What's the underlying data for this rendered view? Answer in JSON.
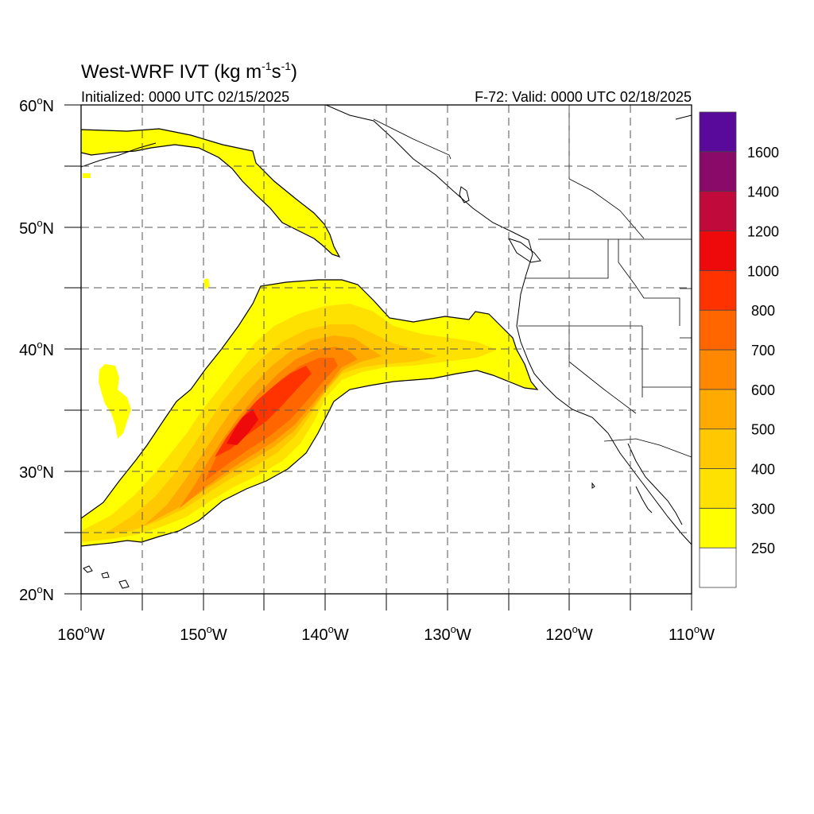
{
  "title_main": "West-WRF IVT (kg m",
  "title_exp1": "-1",
  "title_mid": "s",
  "title_exp2": "-1",
  "title_end": ")",
  "init_text": "Initialized: 0000 UTC 02/15/2025",
  "valid_text": "F-72: Valid: 0000 UTC 02/18/2025",
  "lat_labels": [
    {
      "deg": "20",
      "sup": "o",
      "hemi": "N"
    },
    {
      "deg": "30",
      "sup": "o",
      "hemi": "N"
    },
    {
      "deg": "40",
      "sup": "o",
      "hemi": "N"
    },
    {
      "deg": "50",
      "sup": "o",
      "hemi": "N"
    },
    {
      "deg": "60",
      "sup": "o",
      "hemi": "N"
    }
  ],
  "lon_labels": [
    {
      "deg": "160",
      "sup": "o",
      "hemi": "W"
    },
    {
      "deg": "150",
      "sup": "o",
      "hemi": "W"
    },
    {
      "deg": "140",
      "sup": "o",
      "hemi": "W"
    },
    {
      "deg": "130",
      "sup": "o",
      "hemi": "W"
    },
    {
      "deg": "120",
      "sup": "o",
      "hemi": "W"
    },
    {
      "deg": "110",
      "sup": "o",
      "hemi": "W"
    }
  ],
  "colorbar": {
    "levels": [
      250,
      300,
      400,
      500,
      600,
      700,
      800,
      1000,
      1200,
      1400,
      1600
    ],
    "colors": [
      "#ffffff",
      "#ffff00",
      "#ffe100",
      "#ffc800",
      "#ffaa00",
      "#ff8800",
      "#ff6600",
      "#ff3300",
      "#ee0a0a",
      "#c00a3c",
      "#8a0a6a",
      "#5a0a9a"
    ]
  },
  "colors": {
    "contour": "#000000",
    "grid": "#555555",
    "border": "#000000"
  }
}
